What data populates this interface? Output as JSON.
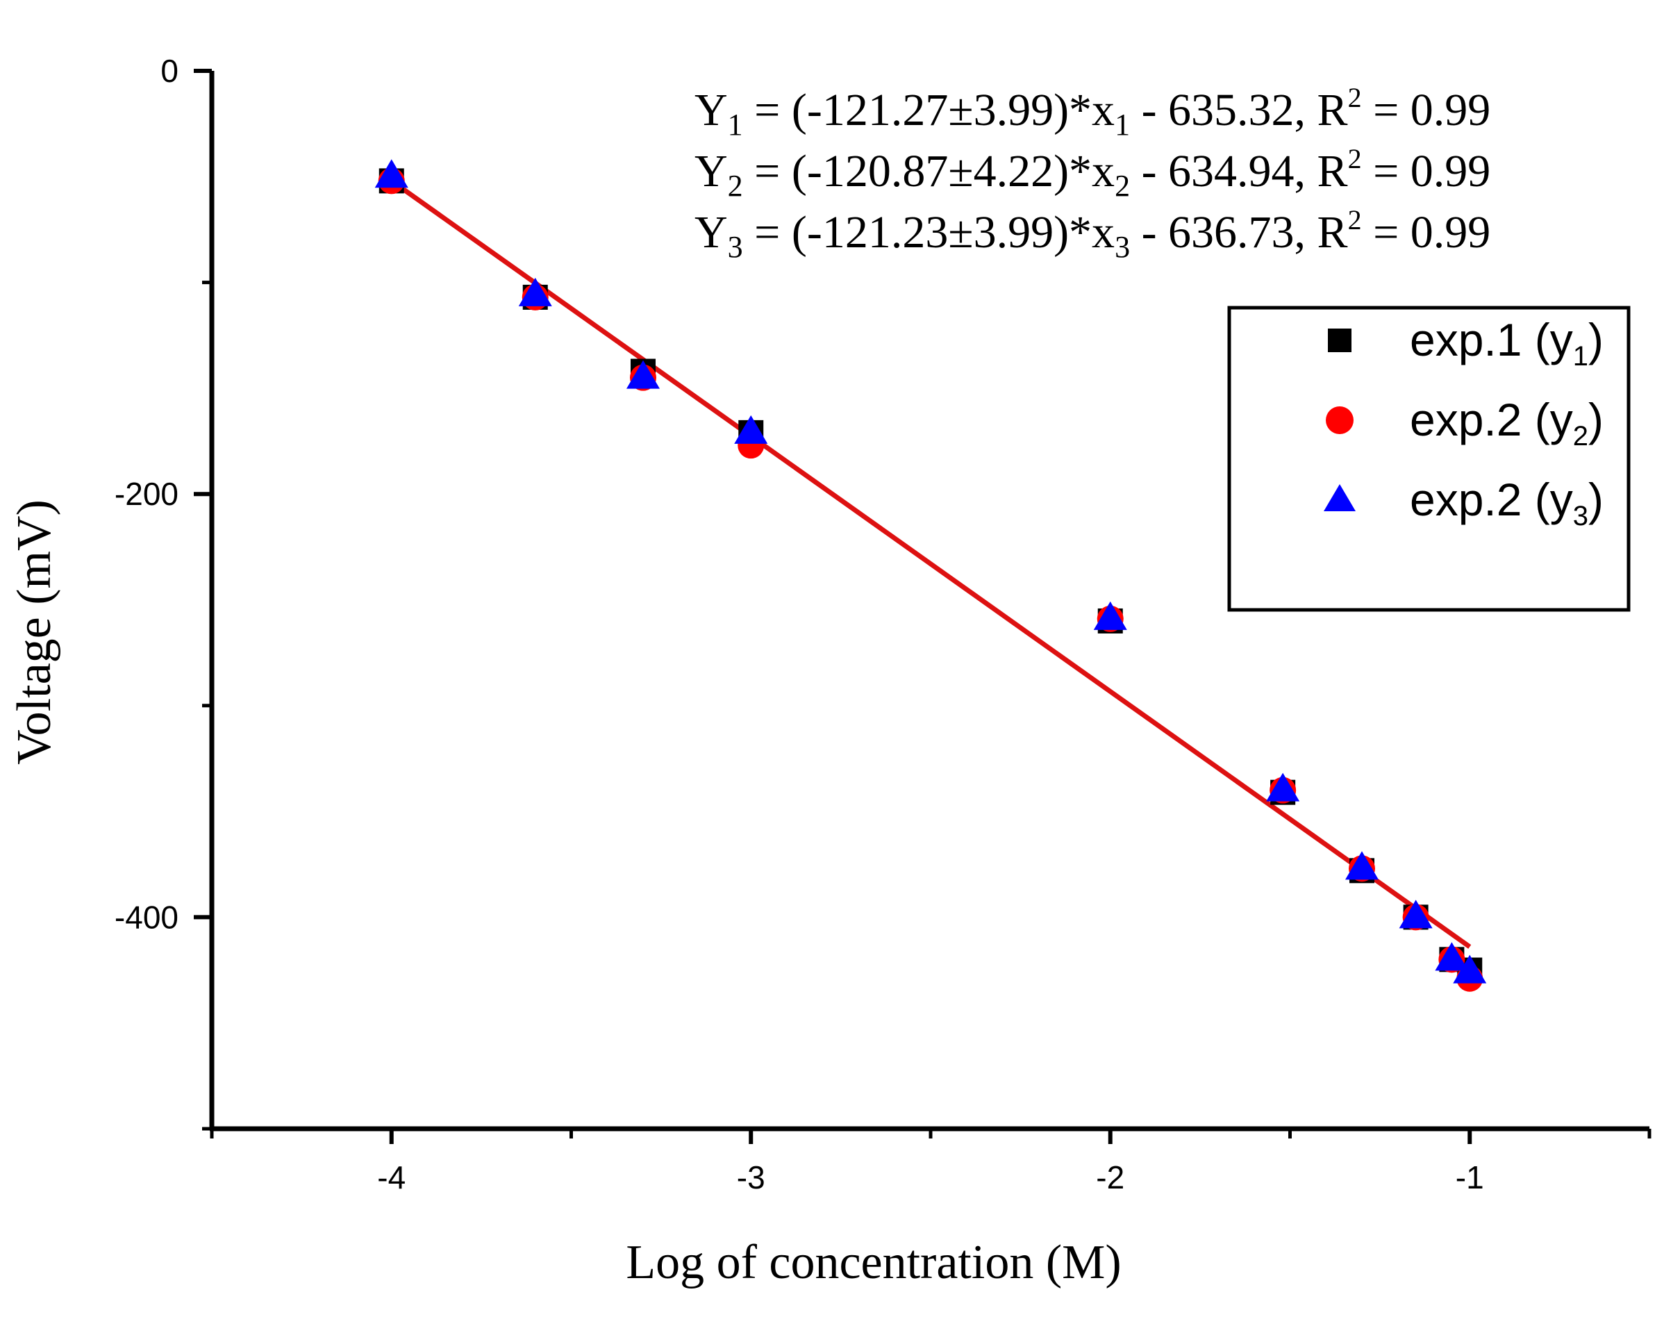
{
  "chart_data": {
    "type": "scatter",
    "xlabel": "Log of concentration (M)",
    "ylabel": "Voltage (mV)",
    "xlim": [
      -4.5,
      -0.5
    ],
    "ylim": [
      -500,
      0
    ],
    "x_ticks": [
      -4,
      -3,
      -2,
      -1
    ],
    "x_tick_labels": [
      "-4",
      "-3",
      "-2",
      "-1"
    ],
    "x_minor_ticks": [
      -4.5,
      -3.5,
      -2.5,
      -1.5,
      -0.5
    ],
    "y_ticks": [
      0,
      -200,
      -400
    ],
    "y_tick_labels": [
      "0",
      "-200",
      "-400"
    ],
    "y_minor_ticks": [
      -100,
      -300,
      -500
    ],
    "series": [
      {
        "name": "exp.1 (y1)",
        "label": "exp.1 (y",
        "label_sub": "1",
        "label_close": ")",
        "marker": "square",
        "color": "#000000",
        "x": [
          -4,
          -3.6,
          -3.3,
          -3,
          -2,
          -1.52,
          -1.3,
          -1.15,
          -1.05,
          -1
        ],
        "y": [
          -52,
          -107,
          -142,
          -171,
          -260,
          -341,
          -378,
          -400,
          -420,
          -425
        ]
      },
      {
        "name": "exp.2 (y2)",
        "label": "exp.2 (y",
        "label_sub": "2",
        "label_close": ")",
        "marker": "circle",
        "color": "#ff0000",
        "x": [
          -4,
          -3.6,
          -3.3,
          -3,
          -2,
          -1.52,
          -1.3,
          -1.15,
          -1.05,
          -1
        ],
        "y": [
          -52,
          -107,
          -145,
          -177,
          -259,
          -340,
          -377,
          -400,
          -420,
          -429
        ]
      },
      {
        "name": "exp.2 (y3)",
        "label": "exp.2 (y",
        "label_sub": "3",
        "label_close": ")",
        "marker": "triangle",
        "color": "#0000ff",
        "x": [
          -4,
          -3.6,
          -3.3,
          -3,
          -2,
          -1.52,
          -1.3,
          -1.15,
          -1.05,
          -1
        ],
        "y": [
          -50,
          -106,
          -145,
          -171,
          -259,
          -340,
          -377,
          -400,
          -420,
          -426
        ]
      }
    ],
    "fit_line": {
      "color": "#dd1111",
      "x": [
        -4,
        -1
      ],
      "y": [
        -52,
        -414
      ]
    },
    "equations": [
      {
        "a": "Y",
        "sub": "1",
        "b": " = (-121.27±3.99)*x",
        "sub2": "1",
        "c": " - 635.32, R",
        "sup": "2",
        "d": " = 0.99"
      },
      {
        "a": "Y",
        "sub": "2",
        "b": " = (-120.87±4.22)*x",
        "sub2": "2",
        "c": " - 634.94, R",
        "sup": "2",
        "d": " = 0.99"
      },
      {
        "a": "Y",
        "sub": "3",
        "b": " = (-121.23±3.99)*x",
        "sub2": "3",
        "c": " - 636.73, R",
        "sup": "2",
        "d": " = 0.99"
      }
    ],
    "legend_position": "top-right"
  }
}
